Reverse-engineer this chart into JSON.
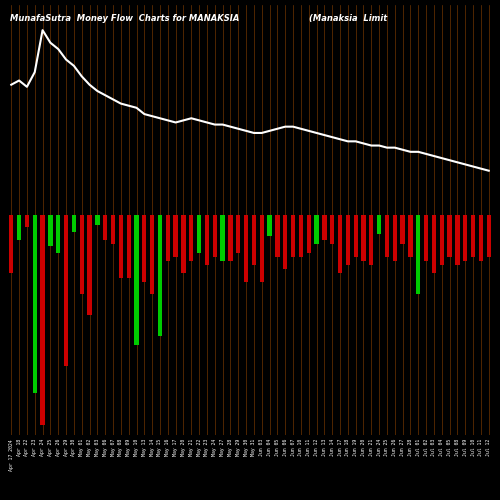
{
  "title": "MunafaSutra  Money Flow  Charts for MANAKSIA",
  "title2": "(Manaksia  Limit",
  "background_color": "#000000",
  "line_color": "#ffffff",
  "grid_color": "#7B3A00",
  "categories": [
    "Apr 17 2024",
    "Apr 18",
    "Apr 22",
    "Apr 23",
    "Apr 24",
    "Apr 25",
    "Apr 26",
    "Apr 29",
    "Apr 30",
    "May 01",
    "May 02",
    "May 03",
    "May 06",
    "May 07",
    "May 08",
    "May 09",
    "May 10",
    "May 13",
    "May 14",
    "May 15",
    "May 16",
    "May 17",
    "May 20",
    "May 21",
    "May 22",
    "May 23",
    "May 24",
    "May 27",
    "May 28",
    "May 29",
    "May 30",
    "May 31",
    "Jun 03",
    "Jun 04",
    "Jun 05",
    "Jun 06",
    "Jun 07",
    "Jun 10",
    "Jun 11",
    "Jun 12",
    "Jun 13",
    "Jun 14",
    "Jun 17",
    "Jun 18",
    "Jun 19",
    "Jun 20",
    "Jun 21",
    "Jun 24",
    "Jun 25",
    "Jun 26",
    "Jun 27",
    "Jun 28",
    "Jul 01",
    "Jul 02",
    "Jul 03",
    "Jul 04",
    "Jul 05",
    "Jul 08",
    "Jul 09",
    "Jul 10",
    "Jul 11",
    "Jul 12"
  ],
  "bar_heights": [
    28,
    12,
    6,
    85,
    100,
    15,
    18,
    72,
    8,
    38,
    48,
    5,
    12,
    14,
    30,
    30,
    62,
    32,
    38,
    58,
    22,
    20,
    28,
    22,
    18,
    24,
    20,
    22,
    22,
    18,
    32,
    24,
    32,
    10,
    20,
    26,
    20,
    20,
    18,
    14,
    12,
    14,
    28,
    24,
    20,
    22,
    24,
    9,
    20,
    22,
    14,
    20,
    38,
    22,
    28,
    24,
    20,
    24,
    22,
    20,
    22,
    20
  ],
  "bar_colors": [
    "red",
    "green",
    "red",
    "green",
    "red",
    "green",
    "green",
    "red",
    "green",
    "red",
    "red",
    "green",
    "red",
    "red",
    "red",
    "red",
    "green",
    "red",
    "red",
    "green",
    "red",
    "red",
    "red",
    "red",
    "green",
    "red",
    "red",
    "green",
    "red",
    "red",
    "red",
    "red",
    "red",
    "green",
    "red",
    "red",
    "red",
    "red",
    "red",
    "green",
    "red",
    "red",
    "red",
    "red",
    "red",
    "red",
    "red",
    "green",
    "red",
    "red",
    "red",
    "red",
    "green",
    "red",
    "red",
    "red",
    "red",
    "red",
    "red",
    "red",
    "red",
    "red"
  ],
  "line_values": [
    62,
    64,
    61,
    68,
    88,
    82,
    79,
    74,
    71,
    66,
    62,
    59,
    57,
    55,
    53,
    52,
    51,
    48,
    47,
    46,
    45,
    44,
    45,
    46,
    45,
    44,
    43,
    43,
    42,
    41,
    40,
    39,
    39,
    40,
    41,
    42,
    42,
    41,
    40,
    39,
    38,
    37,
    36,
    35,
    35,
    34,
    33,
    33,
    32,
    32,
    31,
    30,
    30,
    29,
    28,
    27,
    26,
    25,
    24,
    23,
    22,
    21
  ]
}
